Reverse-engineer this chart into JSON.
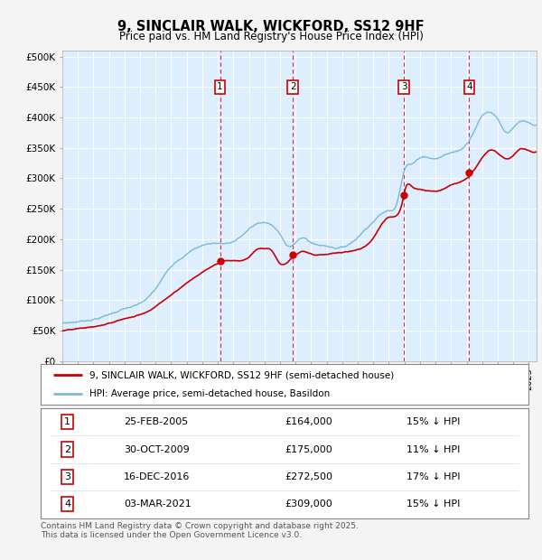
{
  "title": "9, SINCLAIR WALK, WICKFORD, SS12 9HF",
  "subtitle": "Price paid vs. HM Land Registry's House Price Index (HPI)",
  "ylabel_ticks": [
    "£0",
    "£50K",
    "£100K",
    "£150K",
    "£200K",
    "£250K",
    "£300K",
    "£350K",
    "£400K",
    "£450K",
    "£500K"
  ],
  "ytick_values": [
    0,
    50000,
    100000,
    150000,
    200000,
    250000,
    300000,
    350000,
    400000,
    450000,
    500000
  ],
  "ylim": [
    0,
    510000
  ],
  "xlim_start": 1995.0,
  "xlim_end": 2025.5,
  "fig_bg_color": "#f4f4f4",
  "plot_bg_color": "#ddeeff",
  "grid_color": "#ffffff",
  "hpi_line_color": "#7ab8d9",
  "price_line_color": "#cc0000",
  "vline_color": "#cc0000",
  "transactions": [
    {
      "num": 1,
      "date_str": "25-FEB-2005",
      "year": 2005.14,
      "price": 164000,
      "label": "15% ↓ HPI"
    },
    {
      "num": 2,
      "date_str": "30-OCT-2009",
      "year": 2009.83,
      "price": 175000,
      "label": "11% ↓ HPI"
    },
    {
      "num": 3,
      "date_str": "16-DEC-2016",
      "year": 2016.96,
      "price": 272500,
      "label": "17% ↓ HPI"
    },
    {
      "num": 4,
      "date_str": "03-MAR-2021",
      "year": 2021.17,
      "price": 309000,
      "label": "15% ↓ HPI"
    }
  ],
  "legend_entries": [
    "9, SINCLAIR WALK, WICKFORD, SS12 9HF (semi-detached house)",
    "HPI: Average price, semi-detached house, Basildon"
  ],
  "footer_text": "Contains HM Land Registry data © Crown copyright and database right 2025.\nThis data is licensed under the Open Government Licence v3.0.",
  "table_rows": [
    [
      "1",
      "25-FEB-2005",
      "£164,000",
      "15% ↓ HPI"
    ],
    [
      "2",
      "30-OCT-2009",
      "£175,000",
      "11% ↓ HPI"
    ],
    [
      "3",
      "16-DEC-2016",
      "£272,500",
      "17% ↓ HPI"
    ],
    [
      "4",
      "03-MAR-2021",
      "£309,000",
      "15% ↓ HPI"
    ]
  ]
}
